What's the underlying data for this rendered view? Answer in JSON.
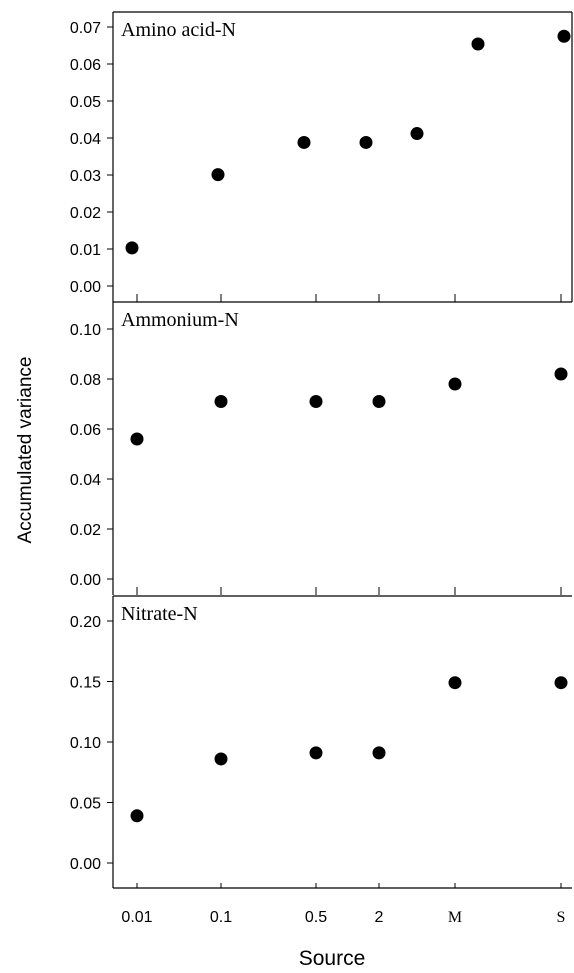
{
  "chart_data": {
    "type": "scatter",
    "ylabel": "Accumulated variance",
    "xlabel": "Source",
    "x_tick_labels": [
      "0.01",
      "0.1",
      "0.5",
      "2",
      "M",
      "S"
    ],
    "point_color": "#000000",
    "panels": [
      {
        "title": "Amino acid-N",
        "ylim": [
          0.0,
          0.07
        ],
        "yticks": [
          "0.00",
          "0.01",
          "0.02",
          "0.03",
          "0.04",
          "0.05",
          "0.06",
          "0.07"
        ],
        "points": [
          {
            "x": "0.01",
            "y": 0.0103
          },
          {
            "x": "0.1",
            "y": 0.0301
          },
          {
            "x": "0.5",
            "y": 0.0388
          },
          {
            "x": "2",
            "y": 0.0388
          },
          {
            "x": "M",
            "y": 0.0412
          },
          {
            "x": "M",
            "y": 0.0654
          },
          {
            "x": "S",
            "y": 0.0675
          }
        ]
      },
      {
        "title": "Ammonium-N",
        "ylim": [
          0.0,
          0.1
        ],
        "yticks": [
          "0.00",
          "0.02",
          "0.04",
          "0.06",
          "0.08",
          "0.10"
        ],
        "points": [
          {
            "x": "0.01",
            "y": 0.056
          },
          {
            "x": "0.1",
            "y": 0.071
          },
          {
            "x": "0.5",
            "y": 0.071
          },
          {
            "x": "2",
            "y": 0.071
          },
          {
            "x": "M",
            "y": 0.078
          },
          {
            "x": "S",
            "y": 0.082
          }
        ]
      },
      {
        "title": "Nitrate-N",
        "ylim": [
          0.0,
          0.2
        ],
        "yticks": [
          "0.00",
          "0.05",
          "0.10",
          "0.15",
          "0.20"
        ],
        "points": [
          {
            "x": "0.01",
            "y": 0.039
          },
          {
            "x": "0.1",
            "y": 0.086
          },
          {
            "x": "0.5",
            "y": 0.091
          },
          {
            "x": "2",
            "y": 0.091
          },
          {
            "x": "M",
            "y": 0.149
          },
          {
            "x": "S",
            "y": 0.149
          }
        ]
      }
    ]
  }
}
